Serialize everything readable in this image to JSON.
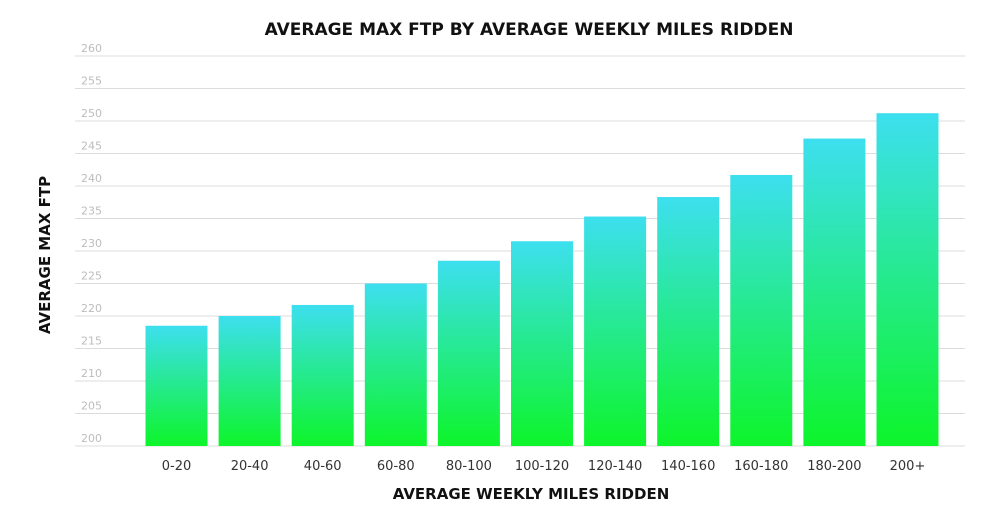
{
  "chart_data": {
    "type": "bar",
    "title": "AVERAGE MAX FTP BY AVERAGE WEEKLY MILES RIDDEN",
    "xlabel": "AVERAGE WEEKLY MILES RIDDEN",
    "ylabel": "AVERAGE MAX FTP",
    "categories": [
      "0-20",
      "20-40",
      "40-60",
      "60-80",
      "80-100",
      "100-120",
      "120-140",
      "140-160",
      "160-180",
      "180-200",
      "200+"
    ],
    "values": [
      218.5,
      220,
      221.7,
      225,
      228.5,
      231.5,
      235.3,
      238.3,
      241.7,
      247.3,
      251.2
    ],
    "ylim": [
      200,
      260
    ],
    "yticks": [
      200,
      205,
      210,
      215,
      220,
      225,
      230,
      235,
      240,
      245,
      250,
      255,
      260
    ],
    "grid": true,
    "legend": "none"
  },
  "colors": {
    "bar_top": "#3ddfef",
    "bar_bottom": "#0df52a",
    "grid": "#dcdcdc",
    "tick_y": "#bdbdbd"
  }
}
